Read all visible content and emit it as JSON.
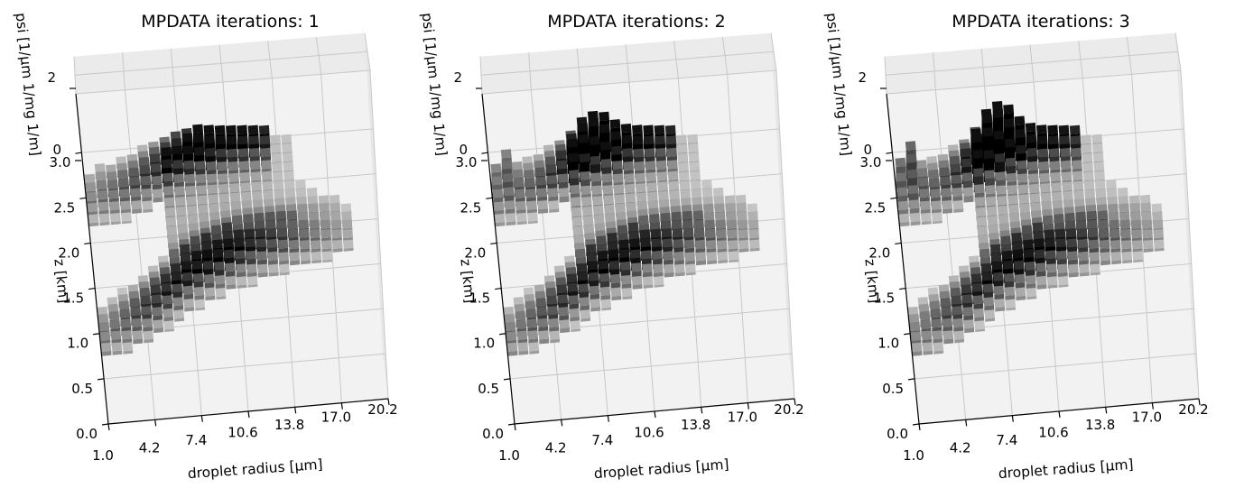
{
  "chart_data": [
    {
      "type": "bar3d",
      "title": "MPDATA iterations: 1",
      "xlabel": "droplet radius [µm]",
      "ylabel": "z [km]",
      "zlabel": "psi [1/µm 1/mg 1/m]",
      "x_ticks": [
        "1.0",
        "4.2",
        "7.4",
        "10.6",
        "13.8",
        "17.0",
        "20.2"
      ],
      "y_ticks": [
        "0.0",
        "0.5",
        "1.0",
        "1.5",
        "2.0",
        "2.5",
        "3.0"
      ],
      "z_ticks": [
        "0",
        "2"
      ],
      "xlim": [
        1.0,
        20.2
      ],
      "ylim": [
        0.0,
        3.0
      ],
      "zlim": [
        0,
        2
      ],
      "grid": true,
      "colormap": "gray_r",
      "ridge": [
        [
          1.0,
          0.95
        ],
        [
          4.2,
          1.2
        ],
        [
          7.4,
          1.55
        ],
        [
          10.6,
          1.75
        ],
        [
          13.8,
          1.85
        ],
        [
          17.0,
          1.9
        ]
      ],
      "peak_height": 0.6
    },
    {
      "type": "bar3d",
      "title": "MPDATA iterations: 2",
      "xlabel": "droplet radius [µm]",
      "ylabel": "z [km]",
      "zlabel": "psi [1/µm 1/mg 1/m]",
      "x_ticks": [
        "1.0",
        "4.2",
        "7.4",
        "10.6",
        "13.8",
        "17.0",
        "20.2"
      ],
      "y_ticks": [
        "0.0",
        "0.5",
        "1.0",
        "1.5",
        "2.0",
        "2.5",
        "3.0"
      ],
      "z_ticks": [
        "0",
        "2"
      ],
      "xlim": [
        1.0,
        20.2
      ],
      "ylim": [
        0.0,
        3.0
      ],
      "zlim": [
        0,
        2
      ],
      "grid": true,
      "colormap": "gray_r",
      "ridge": [
        [
          1.0,
          0.95
        ],
        [
          4.2,
          1.2
        ],
        [
          7.4,
          1.55
        ],
        [
          10.6,
          1.75
        ],
        [
          13.8,
          1.85
        ],
        [
          17.0,
          1.9
        ]
      ],
      "peak_height": 1.3
    },
    {
      "type": "bar3d",
      "title": "MPDATA iterations: 3",
      "xlabel": "droplet radius [µm]",
      "ylabel": "z [km]",
      "zlabel": "psi [1/µm 1/mg 1/m]",
      "x_ticks": [
        "1.0",
        "4.2",
        "7.4",
        "10.6",
        "13.8",
        "17.0",
        "20.2"
      ],
      "y_ticks": [
        "0.0",
        "0.5",
        "1.0",
        "1.5",
        "2.0",
        "2.5",
        "3.0"
      ],
      "z_ticks": [
        "0",
        "2"
      ],
      "xlim": [
        1.0,
        20.2
      ],
      "ylim": [
        0.0,
        3.0
      ],
      "zlim": [
        0,
        2
      ],
      "grid": true,
      "colormap": "gray_r",
      "ridge": [
        [
          1.0,
          0.95
        ],
        [
          4.2,
          1.2
        ],
        [
          7.4,
          1.55
        ],
        [
          10.6,
          1.75
        ],
        [
          13.8,
          1.85
        ],
        [
          17.0,
          1.9
        ]
      ],
      "peak_height": 1.7
    }
  ]
}
